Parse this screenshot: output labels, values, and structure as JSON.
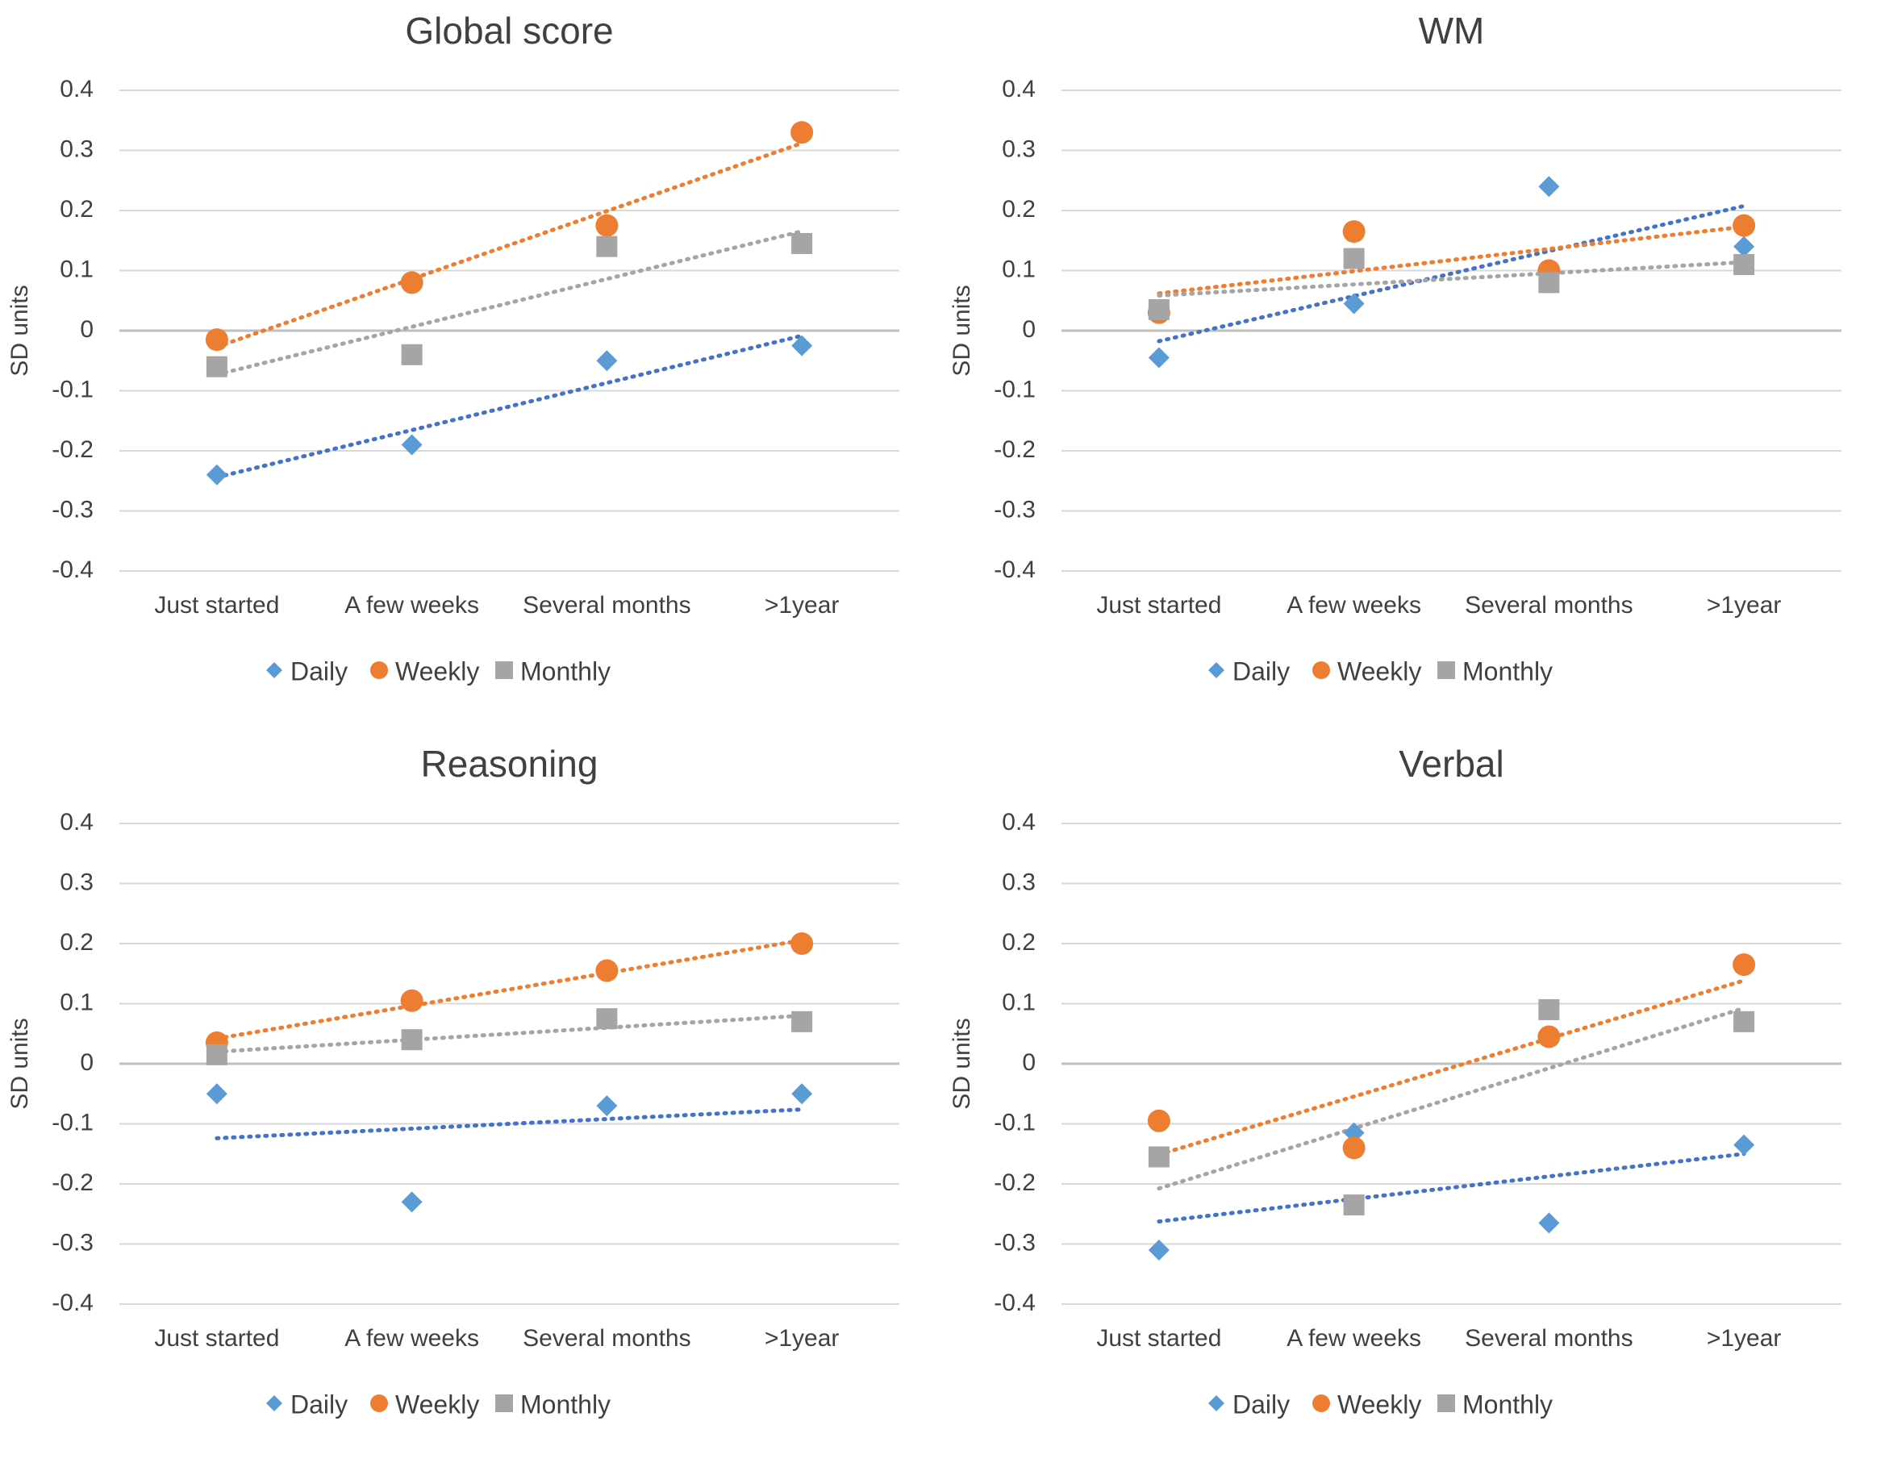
{
  "chart_data": [
    {
      "type": "scatter",
      "title": "Global  score",
      "ylabel": "SD units",
      "ylim": [
        -0.4,
        0.4
      ],
      "yticks": [
        "0.4",
        "0.3",
        "0.2",
        "0.1",
        "0",
        "-0.1",
        "-0.2",
        "-0.3",
        "-0.4"
      ],
      "categories": [
        "Just started",
        "A few weeks",
        "Several months",
        ">1year"
      ],
      "trendlines": "linear, dotted",
      "series": [
        {
          "name": "Daily",
          "values": [
            -0.24,
            -0.19,
            -0.05,
            -0.025
          ]
        },
        {
          "name": "Weekly",
          "values": [
            -0.015,
            0.08,
            0.175,
            0.33
          ]
        },
        {
          "name": "Monthly",
          "values": [
            -0.06,
            -0.04,
            0.14,
            0.145
          ]
        }
      ]
    },
    {
      "type": "scatter",
      "title": "WM",
      "ylabel": "SD units",
      "ylim": [
        -0.4,
        0.4
      ],
      "yticks": [
        "0.4",
        "0.3",
        "0.2",
        "0.1",
        "0",
        "-0.1",
        "-0.2",
        "-0.3",
        "-0.4"
      ],
      "categories": [
        "Just started",
        "A few weeks",
        "Several months",
        ">1year"
      ],
      "trendlines": "linear, dotted",
      "series": [
        {
          "name": "Daily",
          "values": [
            -0.045,
            0.045,
            0.24,
            0.14
          ]
        },
        {
          "name": "Weekly",
          "values": [
            0.03,
            0.165,
            0.1,
            0.175
          ]
        },
        {
          "name": "Monthly",
          "values": [
            0.035,
            0.12,
            0.08,
            0.11
          ]
        }
      ]
    },
    {
      "type": "scatter",
      "title": "Reasoning",
      "ylabel": "SD units",
      "ylim": [
        -0.4,
        0.4
      ],
      "yticks": [
        "0.4",
        "0.3",
        "0.2",
        "0.1",
        "0",
        "-0.1",
        "-0.2",
        "-0.3",
        "-0.4"
      ],
      "categories": [
        "Just started",
        "A few weeks",
        "Several months",
        ">1year"
      ],
      "trendlines": "linear, dotted",
      "series": [
        {
          "name": "Daily",
          "values": [
            -0.05,
            -0.23,
            -0.07,
            -0.05
          ]
        },
        {
          "name": "Weekly",
          "values": [
            0.035,
            0.105,
            0.155,
            0.2
          ]
        },
        {
          "name": "Monthly",
          "values": [
            0.015,
            0.04,
            0.075,
            0.07
          ]
        }
      ]
    },
    {
      "type": "scatter",
      "title": "Verbal",
      "ylabel": "SD units",
      "ylim": [
        -0.4,
        0.4
      ],
      "yticks": [
        "0.4",
        "0.3",
        "0.2",
        "0.1",
        "0",
        "-0.1",
        "-0.2",
        "-0.3",
        "-0.4"
      ],
      "categories": [
        "Just started",
        "A few weeks",
        "Several months",
        ">1year"
      ],
      "trendlines": "linear, dotted",
      "series": [
        {
          "name": "Daily",
          "values": [
            -0.31,
            -0.115,
            -0.265,
            -0.135
          ]
        },
        {
          "name": "Weekly",
          "values": [
            -0.095,
            -0.14,
            0.045,
            0.165
          ]
        },
        {
          "name": "Monthly",
          "values": [
            -0.155,
            -0.235,
            0.09,
            0.07
          ]
        }
      ]
    }
  ],
  "colors": {
    "Daily": "#5B9BD5",
    "Weekly": "#ED7D31",
    "Monthly": "#A5A5A5",
    "DailyTrend": "#4472C4",
    "WeeklyTrend": "#ED7D31",
    "MonthlyTrend": "#A5A5A5",
    "grid": "#D9D9D9",
    "zero": "#BFBFBF",
    "text": "#404040"
  }
}
